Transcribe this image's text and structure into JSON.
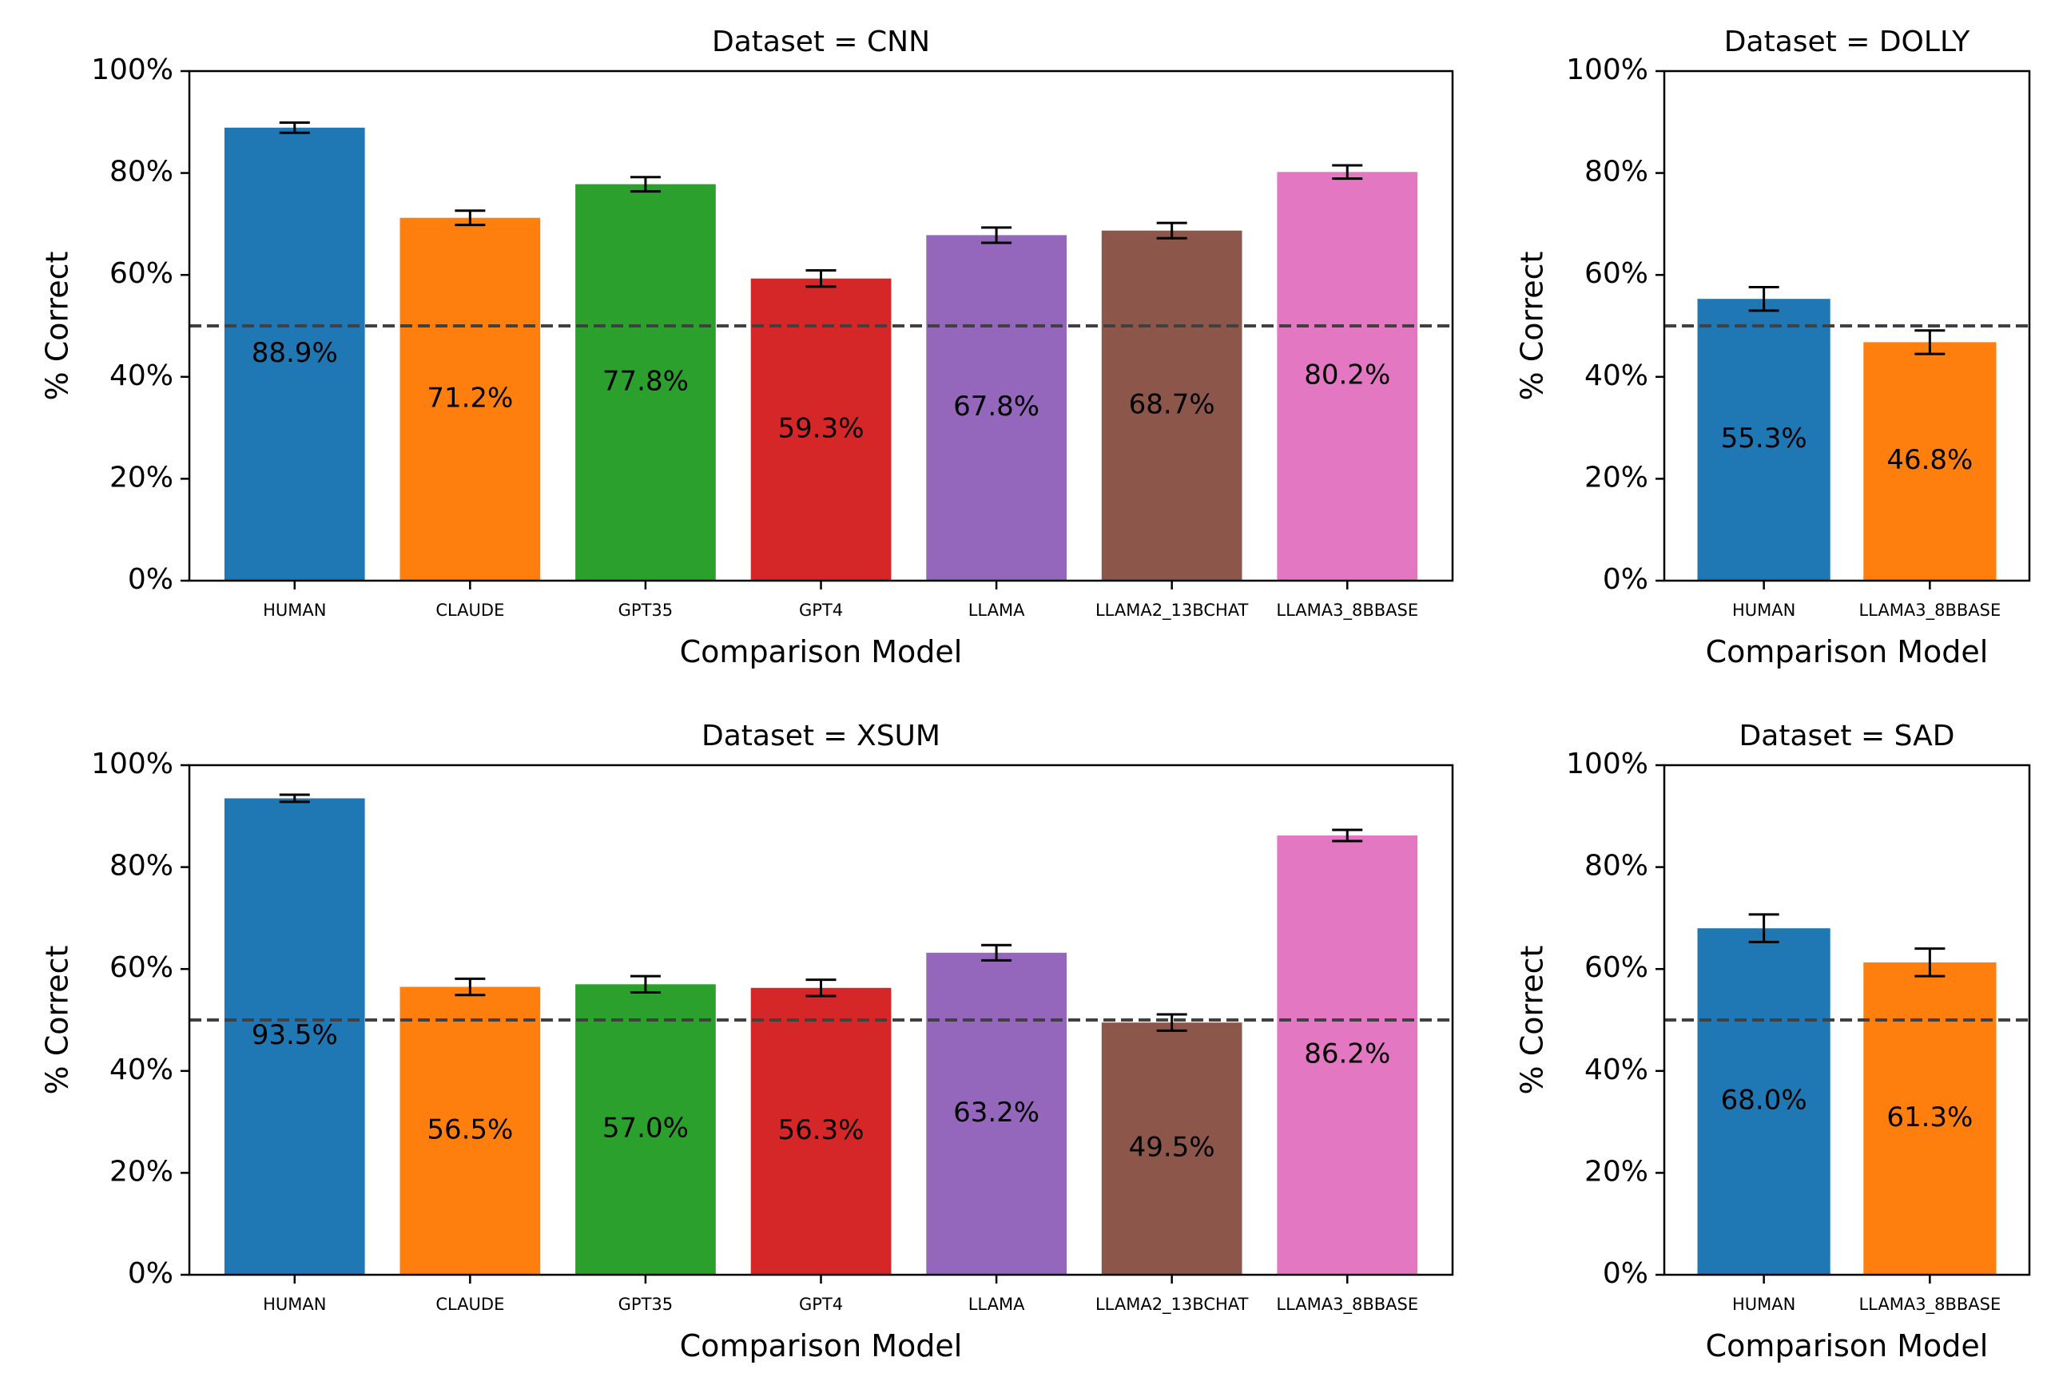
{
  "chart_data": [
    {
      "type": "bar",
      "title": "Dataset = CNN",
      "xlabel": "Comparison Model",
      "ylabel": "% Correct",
      "ylim": [
        0,
        100
      ],
      "yticks": [
        "0%",
        "20%",
        "40%",
        "60%",
        "80%",
        "100%"
      ],
      "reference_line": 50,
      "categories": [
        "HUMAN",
        "CLAUDE",
        "GPT35",
        "GPT4",
        "LLAMA",
        "LLAMA2_13BCHAT",
        "LLAMA3_8BBASE"
      ],
      "values": [
        88.9,
        71.2,
        77.8,
        59.3,
        67.8,
        68.7,
        80.2
      ],
      "errors": [
        1.0,
        1.4,
        1.4,
        1.6,
        1.5,
        1.5,
        1.3
      ],
      "labels": [
        "88.9%",
        "71.2%",
        "77.8%",
        "59.3%",
        "67.8%",
        "68.7%",
        "80.2%"
      ]
    },
    {
      "type": "bar",
      "title": "Dataset = DOLLY",
      "xlabel": "Comparison Model",
      "ylabel": "% Correct",
      "ylim": [
        0,
        100
      ],
      "yticks": [
        "0%",
        "20%",
        "40%",
        "60%",
        "80%",
        "100%"
      ],
      "reference_line": 50,
      "categories": [
        "HUMAN",
        "LLAMA3_8BBASE"
      ],
      "values": [
        55.3,
        46.8
      ],
      "errors": [
        2.3,
        2.3
      ],
      "labels": [
        "55.3%",
        "46.8%"
      ]
    },
    {
      "type": "bar",
      "title": "Dataset = XSUM",
      "xlabel": "Comparison Model",
      "ylabel": "% Correct",
      "ylim": [
        0,
        100
      ],
      "yticks": [
        "0%",
        "20%",
        "40%",
        "60%",
        "80%",
        "100%"
      ],
      "reference_line": 50,
      "categories": [
        "HUMAN",
        "CLAUDE",
        "GPT35",
        "GPT4",
        "LLAMA",
        "LLAMA2_13BCHAT",
        "LLAMA3_8BBASE"
      ],
      "values": [
        93.5,
        56.5,
        57.0,
        56.3,
        63.2,
        49.5,
        86.2
      ],
      "errors": [
        0.7,
        1.6,
        1.6,
        1.6,
        1.5,
        1.6,
        1.1
      ],
      "labels": [
        "93.5%",
        "56.5%",
        "57.0%",
        "56.3%",
        "63.2%",
        "49.5%",
        "86.2%"
      ]
    },
    {
      "type": "bar",
      "title": "Dataset = SAD",
      "xlabel": "Comparison Model",
      "ylabel": "% Correct",
      "ylim": [
        0,
        100
      ],
      "yticks": [
        "0%",
        "20%",
        "40%",
        "60%",
        "80%",
        "100%"
      ],
      "reference_line": 50,
      "categories": [
        "HUMAN",
        "LLAMA3_8BBASE"
      ],
      "values": [
        68.0,
        61.3
      ],
      "errors": [
        2.7,
        2.7
      ],
      "labels": [
        "68.0%",
        "61.3%"
      ]
    }
  ],
  "colors": [
    "#1f77b4",
    "#ff7f0e",
    "#2ca02c",
    "#d62728",
    "#9467bd",
    "#8c564b",
    "#e377c2"
  ]
}
